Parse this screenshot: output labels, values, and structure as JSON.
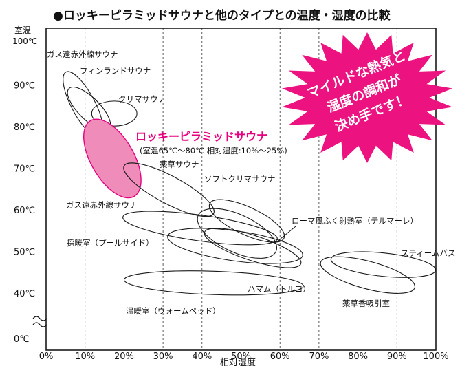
{
  "chart_data": {
    "type": "scatter",
    "title": "●ロッキーピラミッドサウナと他のタイプとの温度・湿度の比較",
    "xlabel": "相対湿度",
    "ylabel": [
      "室温",
      "100℃"
    ],
    "x_ticks": [
      "0%",
      "10%",
      "20%",
      "30%",
      "40%",
      "50%",
      "60%",
      "70%",
      "80%",
      "90%",
      "100%"
    ],
    "y_ticks": [
      "90℃",
      "80℃",
      "70℃",
      "60℃",
      "50℃",
      "40℃",
      "0℃"
    ],
    "xlim": [
      0,
      100
    ],
    "ylim": [
      30,
      100
    ],
    "axis_break": "0℃ – 40℃",
    "grid": "vertical dashed",
    "regions": [
      {
        "name": "ガス遠赤外線サウナ",
        "x_range": [
          5,
          15
        ],
        "y_range": [
          78,
          93
        ]
      },
      {
        "name": "フィンランドサウナ",
        "x_range": [
          6,
          16
        ],
        "y_range": [
          79,
          90
        ]
      },
      {
        "name": "クリマサウナ",
        "x_range": [
          11,
          23
        ],
        "y_range": [
          81,
          86
        ]
      },
      {
        "name": "ロッキーピラミッドサウナ",
        "x_range": [
          10,
          25
        ],
        "y_range": [
          65,
          80
        ],
        "highlight": true
      },
      {
        "name": "薬草サウナ",
        "x_range": [
          20,
          44
        ],
        "y_range": [
          58,
          71
        ]
      },
      {
        "name": "ソフトクリマサウナ",
        "x_range": [
          40,
          63
        ],
        "y_range": [
          51,
          64
        ]
      },
      {
        "name": "ガス遠赤外線サウナ",
        "x_range": [
          20,
          59
        ],
        "y_range": [
          52,
          59
        ]
      },
      {
        "name": "ローマ風ふく射熱室（テルマーレ）",
        "x_range": [
          38,
          61
        ],
        "y_range": [
          49,
          61
        ]
      },
      {
        "name": "採暖室（プールサイド）",
        "x_range": [
          31,
          66
        ],
        "y_range": [
          47,
          55
        ]
      },
      {
        "name": "ハマム（トルコ）",
        "x_range": [
          40,
          66
        ],
        "y_range": [
          44,
          58
        ]
      },
      {
        "name": "温暖室（ウォームベッド）",
        "x_range": [
          20,
          66
        ],
        "y_range": [
          40,
          45
        ]
      },
      {
        "name": "スティームバス",
        "x_range": [
          73,
          100
        ],
        "y_range": [
          43,
          51
        ]
      },
      {
        "name": "薬草香吸引室",
        "x_range": [
          70,
          95
        ],
        "y_range": [
          40,
          49
        ]
      }
    ]
  },
  "highlight": {
    "name": "ロッキーピラミッドサウナ",
    "detail": "(室温65℃〜80℃ 相対湿度:10%〜25%)",
    "color": "#e6007e",
    "fill": "#f08cb9"
  },
  "callout": {
    "lines": [
      "マイルドな熱気と",
      "湿度の調和が",
      "決め手です！"
    ],
    "color": "#ec1380"
  }
}
